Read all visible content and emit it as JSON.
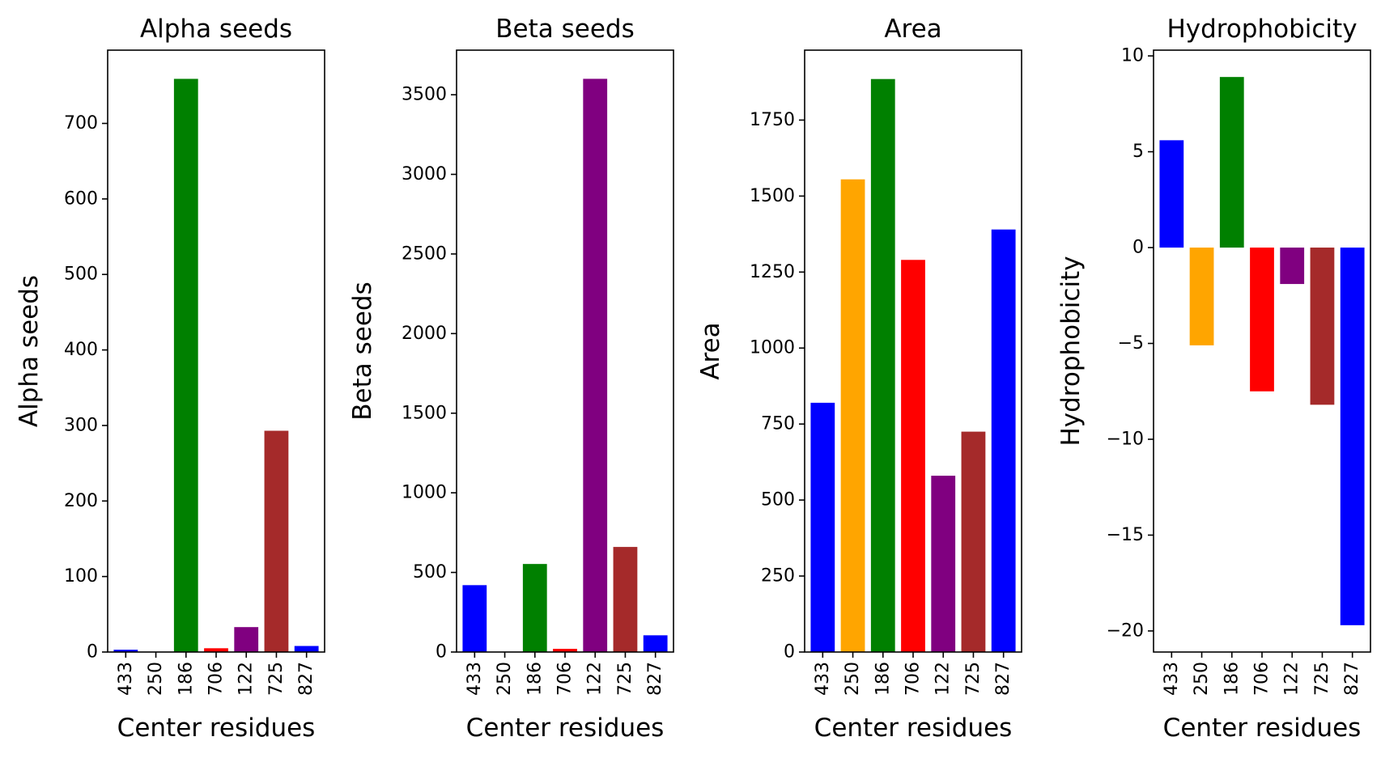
{
  "chart_data": [
    {
      "type": "bar",
      "title": "Alpha seeds",
      "xlabel": "Center residues",
      "ylabel": "Alpha seeds",
      "categories": [
        "433",
        "250",
        "186",
        "706",
        "122",
        "725",
        "827"
      ],
      "values": [
        3,
        0,
        759,
        5,
        33,
        293,
        8
      ],
      "colors": [
        "#0000ff",
        "#ffa500",
        "#008000",
        "#ff0000",
        "#800080",
        "#a52a2a",
        "#0000ff"
      ],
      "ylim": [
        0,
        797
      ],
      "yticks": [
        0,
        100,
        200,
        300,
        400,
        500,
        600,
        700
      ]
    },
    {
      "type": "bar",
      "title": "Beta seeds",
      "xlabel": "Center residues",
      "ylabel": "Beta seeds",
      "categories": [
        "433",
        "250",
        "186",
        "706",
        "122",
        "725",
        "827"
      ],
      "values": [
        420,
        0,
        553,
        20,
        3600,
        660,
        105
      ],
      "colors": [
        "#0000ff",
        "#ffa500",
        "#008000",
        "#ff0000",
        "#800080",
        "#a52a2a",
        "#0000ff"
      ],
      "ylim": [
        0,
        3780
      ],
      "yticks": [
        0,
        500,
        1000,
        1500,
        2000,
        2500,
        3000,
        3500
      ]
    },
    {
      "type": "bar",
      "title": "Area",
      "xlabel": "Center residues",
      "ylabel": "Area",
      "categories": [
        "433",
        "250",
        "186",
        "706",
        "122",
        "725",
        "827"
      ],
      "values": [
        820,
        1555,
        1885,
        1290,
        580,
        725,
        1390
      ],
      "colors": [
        "#0000ff",
        "#ffa500",
        "#008000",
        "#ff0000",
        "#800080",
        "#a52a2a",
        "#0000ff"
      ],
      "ylim": [
        0,
        1980
      ],
      "yticks": [
        0,
        250,
        500,
        750,
        1000,
        1250,
        1500,
        1750
      ]
    },
    {
      "type": "bar",
      "title": "Hydrophobicity",
      "xlabel": "Center residues",
      "ylabel": "Hydrophobicity",
      "categories": [
        "433",
        "250",
        "186",
        "706",
        "122",
        "725",
        "827"
      ],
      "values": [
        5.6,
        -5.1,
        8.9,
        -7.5,
        -1.9,
        -8.2,
        -19.7
      ],
      "colors": [
        "#0000ff",
        "#ffa500",
        "#008000",
        "#ff0000",
        "#800080",
        "#a52a2a",
        "#0000ff"
      ],
      "ylim": [
        -21.1,
        10.3
      ],
      "yticks": [
        10,
        5,
        0,
        -5,
        -10,
        -15,
        -20
      ],
      "ytick_labels": [
        "10",
        "5",
        "0",
        "−5",
        "−10",
        "−15",
        "−20"
      ]
    }
  ]
}
